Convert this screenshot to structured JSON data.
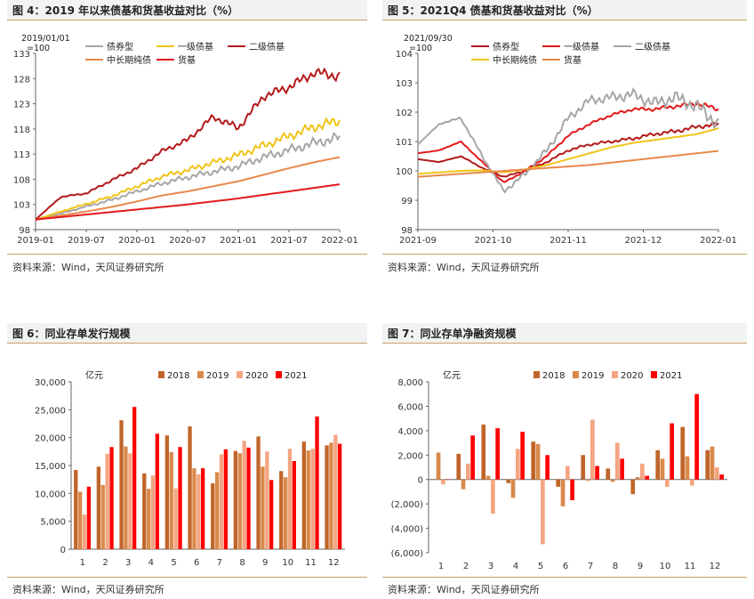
{
  "panels": [
    {
      "title": "图 4：2019 年以来债基和货基收益对比（%）",
      "source": "资料来源：Wind，天风证券研究所",
      "chart_data": {
        "type": "line",
        "annotation": "2019/01/01\n=100",
        "x_ticks": [
          "2019-01",
          "2019-07",
          "2020-01",
          "2020-07",
          "2021-01",
          "2021-07",
          "2022-01"
        ],
        "ylim": [
          98,
          133
        ],
        "y_ticks": [
          98,
          103,
          108,
          113,
          118,
          123,
          128,
          133
        ],
        "legend_rows": [
          [
            "债券型",
            "一级债基",
            "二级债基"
          ],
          [
            "中长期纯债",
            "货基"
          ]
        ],
        "series": [
          {
            "name": "债券型",
            "color": "#a6a6a6",
            "values": [
              100,
              101.2,
              102.6,
              103.9,
              105.6,
              107.2,
              108.4,
              109.5,
              110.6,
              112.4,
              113.8,
              115.2,
              116.3
            ]
          },
          {
            "name": "一级债基",
            "color": "#f0c419",
            "values": [
              100,
              101.6,
              103.1,
              104.6,
              106.6,
              108.6,
              109.8,
              111.3,
              112.8,
              114.7,
              116.6,
              118.4,
              119.6
            ]
          },
          {
            "name": "二级债基",
            "color": "#b41a1a",
            "values": [
              100,
              104.5,
              105.2,
              107.8,
              110.2,
              113.6,
              115.8,
              120.4,
              118.2,
              124.5,
              126.3,
              129.2,
              128.5
            ]
          },
          {
            "name": "中长期纯债",
            "color": "#e8894a",
            "values": [
              100,
              100.8,
              101.6,
              102.5,
              103.6,
              104.8,
              105.6,
              106.6,
              107.6,
              108.9,
              110.2,
              111.4,
              112.4
            ]
          },
          {
            "name": "货基",
            "color": "#e31a1c",
            "values": [
              100,
              100.5,
              101,
              101.5,
              102,
              102.5,
              103,
              103.6,
              104.2,
              104.9,
              105.6,
              106.3,
              107
            ]
          }
        ]
      }
    },
    {
      "title": "图 5：2021Q4 债基和货基收益对比（%）",
      "source": "资料来源：Wind，天风证券研究所",
      "chart_data": {
        "type": "line",
        "annotation": "2021/09/30\n=100",
        "x_ticks": [
          "2021-09",
          "2021-10",
          "2021-11",
          "2021-12",
          "2022-01"
        ],
        "ylim": [
          98,
          104
        ],
        "y_ticks": [
          98,
          99,
          100,
          101,
          102,
          103,
          104
        ],
        "legend_rows": [
          [
            "债券型",
            "一级债基",
            "二级债基"
          ],
          [
            "中长期纯债",
            "货基"
          ]
        ],
        "series": [
          {
            "name": "债券型",
            "color": "#b41a1a",
            "values": [
              100.4,
              100.3,
              100.5,
              100.1,
              99.8,
              100.0,
              100.3,
              100.7,
              100.9,
              101.0,
              101.1,
              101.25,
              101.35,
              101.5,
              101.6
            ]
          },
          {
            "name": "一级债基",
            "color": "#e31a1c",
            "values": [
              100.6,
              100.7,
              101.0,
              100.3,
              99.6,
              100.0,
              100.5,
              101.2,
              101.6,
              101.9,
              102.1,
              102.1,
              102.2,
              102.3,
              102.1
            ]
          },
          {
            "name": "二级债基",
            "color": "#a6a6a6",
            "values": [
              100.9,
              101.6,
              101.8,
              100.5,
              99.3,
              99.9,
              100.7,
              101.8,
              102.4,
              102.5,
              102.6,
              102.3,
              102.5,
              102.2,
              101.6
            ]
          },
          {
            "name": "中长期纯债",
            "color": "#f0c419",
            "values": [
              99.9,
              99.95,
              100.0,
              100.02,
              99.95,
              100.05,
              100.2,
              100.4,
              100.6,
              100.8,
              100.95,
              101.05,
              101.15,
              101.25,
              101.45
            ]
          },
          {
            "name": "货基",
            "color": "#e8894a",
            "values": [
              99.8,
              99.85,
              99.9,
              99.95,
              100.0,
              100.05,
              100.1,
              100.15,
              100.2,
              100.28,
              100.36,
              100.44,
              100.52,
              100.6,
              100.68
            ]
          }
        ]
      }
    },
    {
      "title": "图 6：同业存单发行规模",
      "source": "资料来源：Wind，天风证券研究所",
      "chart_data": {
        "type": "bar",
        "unit": "亿元",
        "categories": [
          "1",
          "2",
          "3",
          "4",
          "5",
          "6",
          "7",
          "8",
          "9",
          "10",
          "11",
          "12"
        ],
        "ylim": [
          0,
          30000
        ],
        "y_tick_labels": [
          "0",
          "5,000",
          "10,000",
          "15,000",
          "20,000",
          "25,000",
          "30,000"
        ],
        "y_tick_values": [
          0,
          5000,
          10000,
          15000,
          20000,
          25000,
          30000
        ],
        "series": [
          {
            "name": "2018",
            "color": "#c0652a",
            "values": [
              14200,
              14800,
              23100,
              13600,
              20400,
              22000,
              11800,
              17600,
              20200,
              14000,
              19300,
              18600
            ]
          },
          {
            "name": "2019",
            "color": "#d9894a",
            "values": [
              10300,
              11500,
              18400,
              10800,
              17400,
              14500,
              13800,
              17200,
              14800,
              12900,
              17700,
              19100
            ]
          },
          {
            "name": "2020",
            "color": "#f4a582",
            "values": [
              6200,
              17100,
              17200,
              13200,
              10900,
              13400,
              17000,
              19400,
              17500,
              18000,
              18000,
              20500
            ]
          },
          {
            "name": "2021",
            "color": "#ff0000",
            "values": [
              11200,
              18300,
              25500,
              20700,
              18300,
              14500,
              17900,
              18200,
              12400,
              15800,
              23800,
              18900
            ]
          }
        ]
      }
    },
    {
      "title": "图 7：同业存单净融资规模",
      "source": "资料来源：Wind，天风证券研究所",
      "chart_data": {
        "type": "bar",
        "unit": "亿元",
        "categories": [
          "1",
          "2",
          "3",
          "4",
          "5",
          "6",
          "7",
          "8",
          "9",
          "10",
          "11",
          "12"
        ],
        "ylim": [
          -6000,
          8000
        ],
        "y_tick_labels": [
          "(6,000)",
          "(4,000)",
          "(2,000)",
          "0",
          "2,000",
          "4,000",
          "6,000",
          "8,000"
        ],
        "y_tick_values": [
          -6000,
          -4000,
          -2000,
          0,
          2000,
          4000,
          6000,
          8000
        ],
        "series": [
          {
            "name": "2018",
            "color": "#c0652a",
            "values": [
              0,
              2100,
              4500,
              -300,
              3100,
              -600,
              2000,
              900,
              -1200,
              2400,
              4300,
              2400
            ]
          },
          {
            "name": "2019",
            "color": "#d9894a",
            "values": [
              2200,
              -800,
              300,
              -1500,
              2900,
              -2200,
              -100,
              -200,
              200,
              1700,
              1900,
              2700
            ]
          },
          {
            "name": "2020",
            "color": "#f4a582",
            "values": [
              -400,
              1300,
              -2800,
              2500,
              -5300,
              1100,
              4900,
              3000,
              1300,
              -600,
              -500,
              1000
            ]
          },
          {
            "name": "2021",
            "color": "#ff0000",
            "values": [
              0,
              3600,
              4200,
              3900,
              2000,
              -1700,
              1100,
              1700,
              300,
              4600,
              7000,
              400
            ]
          }
        ]
      }
    }
  ]
}
